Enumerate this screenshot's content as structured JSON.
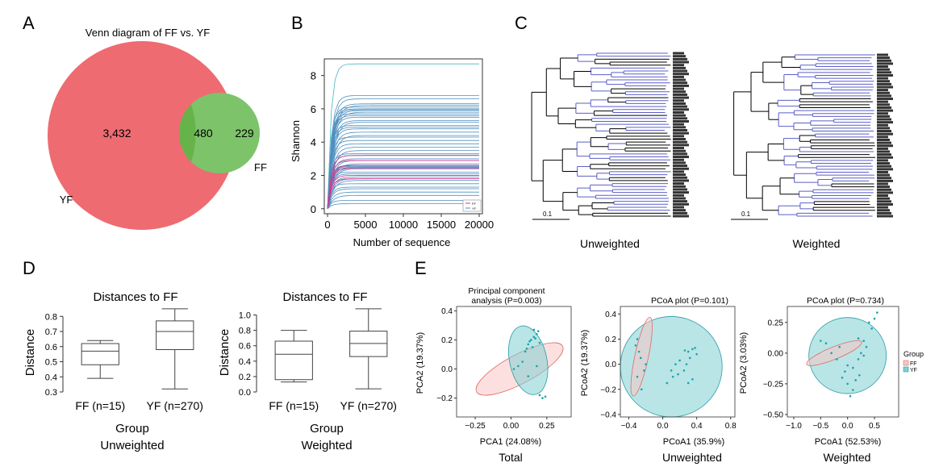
{
  "panels": {
    "A": "A",
    "B": "B",
    "C": "C",
    "D": "D",
    "E": "E"
  },
  "colors": {
    "yf": "#ee6b72",
    "ff": "#7dc36a",
    "overlap": "#66b34a",
    "line_blue": "#4f8fc0",
    "line_pink": "#d33a8f",
    "line_teal": "#43b7c1",
    "tree_blue": "#5b5fc7",
    "ell_red": "#f7c7c4",
    "ell_teal": "#7fd0d3"
  },
  "chart_data": [
    {
      "type": "venn",
      "title": "Venn diagram of FF vs. YF",
      "sets": [
        {
          "name": "YF",
          "only": "3,432"
        },
        {
          "name": "FF",
          "only": "229"
        }
      ],
      "intersection": "480"
    },
    {
      "type": "line",
      "xlabel": "Number of sequence",
      "ylabel": "Shannon",
      "xlim": [
        0,
        20000
      ],
      "ylim": [
        -0.3,
        9
      ],
      "xticks": [
        "0",
        "5000",
        "10000",
        "15000",
        "20000"
      ],
      "yticks": [
        "0",
        "2",
        "4",
        "6",
        "8"
      ],
      "legend": [
        "FF",
        "YF"
      ],
      "legend_position": "bottom-right",
      "series_plateaus": [
        8.7,
        6.8,
        6.6,
        6.3,
        6.2,
        6.1,
        6.0,
        5.95,
        5.9,
        5.8,
        5.7,
        5.6,
        5.5,
        5.3,
        5.2,
        5.0,
        4.9,
        4.8,
        4.6,
        4.4,
        4.3,
        4.1,
        3.9,
        3.7,
        3.5,
        3.3,
        3.2,
        3.0,
        2.9,
        2.7,
        2.6,
        2.55,
        2.5,
        2.45,
        2.4,
        2.2,
        2.1,
        1.9,
        1.8,
        1.7,
        1.5,
        1.3,
        1.2,
        1.0,
        0.8,
        0.5,
        0.3
      ],
      "pink_series": [
        3.2,
        2.9,
        2.6,
        2.45,
        2.0,
        1.8
      ]
    },
    {
      "type": "dendrogram",
      "trees": [
        {
          "label": "Unweighted",
          "scale": "0.1"
        },
        {
          "label": "Weighted",
          "scale": "0.1"
        }
      ]
    },
    {
      "type": "box",
      "title": "Distances to FF",
      "xlabel": "Group",
      "ylabel": "Distance",
      "caption": "Unweighted",
      "categories": [
        "FF (n=15)",
        "YF (n=270)"
      ],
      "ylim": [
        0.3,
        0.86
      ],
      "yticks": [
        "0.3",
        "0.4",
        "0.5",
        "0.6",
        "0.7",
        "0.8"
      ],
      "boxes": [
        {
          "min": 0.39,
          "q1": 0.48,
          "median": 0.57,
          "q3": 0.62,
          "max": 0.64
        },
        {
          "min": 0.32,
          "q1": 0.58,
          "median": 0.7,
          "q3": 0.77,
          "max": 0.85
        }
      ]
    },
    {
      "type": "box",
      "title": "Distances to FF",
      "xlabel": "Group",
      "ylabel": "Distance",
      "caption": "Weighted",
      "categories": [
        "FF (n=15)",
        "YF (n=270)"
      ],
      "ylim": [
        0,
        1.1
      ],
      "yticks": [
        "0.0",
        "0.2",
        "0.4",
        "0.6",
        "0.8",
        "1.0"
      ],
      "boxes": [
        {
          "min": 0.13,
          "q1": 0.16,
          "median": 0.49,
          "q3": 0.66,
          "max": 0.8
        },
        {
          "min": 0.04,
          "q1": 0.46,
          "median": 0.63,
          "q3": 0.79,
          "max": 1.08
        }
      ]
    },
    {
      "type": "scatter",
      "title": "Principal component analysis (P=0.003)",
      "xlabel": "PCA1 (24.08%)",
      "ylabel": "PCA2 (19.37%)",
      "caption": "Total",
      "xlim": [
        -0.38,
        0.42
      ],
      "ylim": [
        -0.33,
        0.43
      ],
      "xticks": [
        {
          "v": -0.25,
          "t": "−0.25"
        },
        {
          "v": 0,
          "t": "0.00"
        },
        {
          "v": 0.25,
          "t": "0.25"
        }
      ],
      "yticks": [
        {
          "v": -0.2,
          "t": "−0.2"
        },
        {
          "v": 0,
          "t": "0.0"
        },
        {
          "v": 0.2,
          "t": "0.2"
        },
        {
          "v": 0.4,
          "t": "0.4"
        }
      ],
      "ellipses": [
        {
          "group": "FF",
          "cx": 0.06,
          "cy": 0.0,
          "rx": 0.34,
          "ry": 0.1,
          "angle": -28
        },
        {
          "group": "YF",
          "cx": 0.12,
          "cy": 0.06,
          "rx": 0.13,
          "ry": 0.24,
          "angle": -12
        }
      ],
      "points": [
        [
          0.14,
          0.2
        ],
        [
          0.16,
          0.22
        ],
        [
          0.12,
          0.17
        ],
        [
          0.18,
          0.24
        ],
        [
          0.15,
          0.15
        ],
        [
          0.1,
          0.12
        ],
        [
          0.2,
          0.18
        ],
        [
          0.17,
          0.21
        ],
        [
          0.13,
          0.19
        ],
        [
          0.19,
          0.26
        ],
        [
          0.05,
          0.02
        ],
        [
          0.02,
          0.0
        ],
        [
          0.08,
          0.05
        ],
        [
          0.2,
          -0.18
        ],
        [
          0.22,
          -0.2
        ],
        [
          0.24,
          -0.19
        ],
        [
          0.12,
          -0.05
        ],
        [
          0.18,
          0.02
        ],
        [
          0.11,
          0.14
        ],
        [
          0.16,
          0.27
        ]
      ]
    },
    {
      "type": "scatter",
      "title": "PCoA plot (P=0.101)",
      "xlabel": "PCoA1 (35.9%)",
      "ylabel": "PCoA2 (19.37%)",
      "caption": "Unweighted",
      "xlim": [
        -0.5,
        0.85
      ],
      "ylim": [
        -0.42,
        0.46
      ],
      "xticks": [
        {
          "v": -0.4,
          "t": "−0.4"
        },
        {
          "v": 0,
          "t": "0.0"
        },
        {
          "v": 0.4,
          "t": "0.4"
        },
        {
          "v": 0.8,
          "t": "0.8"
        }
      ],
      "yticks": [
        {
          "v": -0.4,
          "t": "−0.4"
        },
        {
          "v": -0.2,
          "t": "−0.2"
        },
        {
          "v": 0,
          "t": "0.0"
        },
        {
          "v": 0.2,
          "t": "0.2"
        },
        {
          "v": 0.4,
          "t": "0.4"
        }
      ],
      "ellipses": [
        {
          "group": "YF",
          "cx": 0.1,
          "cy": -0.02,
          "rx": 0.6,
          "ry": 0.4,
          "angle": 0
        },
        {
          "group": "FF",
          "cx": -0.25,
          "cy": 0.06,
          "rx": 0.08,
          "ry": 0.32,
          "angle": 12
        }
      ],
      "points": [
        [
          -0.3,
          0.2
        ],
        [
          -0.28,
          0.1
        ],
        [
          -0.26,
          0.05
        ],
        [
          -0.22,
          -0.05
        ],
        [
          -0.3,
          -0.1
        ],
        [
          -0.25,
          -0.2
        ],
        [
          -0.2,
          0.0
        ],
        [
          -0.32,
          0.15
        ],
        [
          0.3,
          0.1
        ],
        [
          0.35,
          0.12
        ],
        [
          0.32,
          0.05
        ],
        [
          0.28,
          0.0
        ],
        [
          0.25,
          -0.05
        ],
        [
          0.35,
          -0.12
        ],
        [
          0.3,
          -0.15
        ],
        [
          0.4,
          0.08
        ],
        [
          0.1,
          -0.05
        ],
        [
          0.12,
          -0.1
        ],
        [
          0.05,
          -0.15
        ],
        [
          0.18,
          -0.08
        ],
        [
          0.2,
          0.03
        ],
        [
          0.38,
          0.13
        ],
        [
          0.15,
          0.0
        ],
        [
          0.26,
          0.11
        ]
      ]
    },
    {
      "type": "scatter",
      "title": "PCoA plot (P=0.734)",
      "xlabel": "PCoA1 (52.53%)",
      "ylabel": "PCoA2 (3.03%)",
      "caption": "Weighted",
      "legend_title": "Group",
      "legend": [
        "FF",
        "YF"
      ],
      "xlim": [
        -1.12,
        0.95
      ],
      "ylim": [
        -0.52,
        0.38
      ],
      "xticks": [
        {
          "v": -1.0,
          "t": "−1.0"
        },
        {
          "v": -0.5,
          "t": "−0.5"
        },
        {
          "v": 0,
          "t": "0.0"
        },
        {
          "v": 0.5,
          "t": "0.5"
        }
      ],
      "yticks": [
        {
          "v": -0.5,
          "t": "−0.50"
        },
        {
          "v": -0.25,
          "t": "−0.25"
        },
        {
          "v": 0,
          "t": "0.00"
        },
        {
          "v": 0.25,
          "t": "0.25"
        }
      ],
      "ellipses": [
        {
          "group": "YF",
          "cx": 0.0,
          "cy": -0.02,
          "rx": 0.72,
          "ry": 0.31,
          "angle": 0
        },
        {
          "group": "FF",
          "cx": -0.25,
          "cy": 0.0,
          "rx": 0.55,
          "ry": 0.05,
          "angle": -22
        }
      ],
      "points": [
        [
          -0.5,
          0.1
        ],
        [
          -0.4,
          0.08
        ],
        [
          -0.2,
          -0.05
        ],
        [
          0.0,
          -0.1
        ],
        [
          0.1,
          -0.12
        ],
        [
          0.2,
          -0.05
        ],
        [
          0.25,
          0.0
        ],
        [
          0.3,
          -0.02
        ],
        [
          0.35,
          0.05
        ],
        [
          0.4,
          0.25
        ],
        [
          0.45,
          0.2
        ],
        [
          0.5,
          0.28
        ],
        [
          0.55,
          0.33
        ],
        [
          -0.1,
          -0.2
        ],
        [
          0.0,
          -0.25
        ],
        [
          0.1,
          -0.3
        ],
        [
          0.15,
          -0.22
        ],
        [
          -0.05,
          -0.15
        ],
        [
          0.2,
          0.12
        ],
        [
          0.3,
          0.1
        ],
        [
          0.05,
          -0.35
        ],
        [
          -0.3,
          0.0
        ],
        [
          -0.15,
          0.05
        ],
        [
          0.22,
          -0.18
        ]
      ]
    }
  ]
}
